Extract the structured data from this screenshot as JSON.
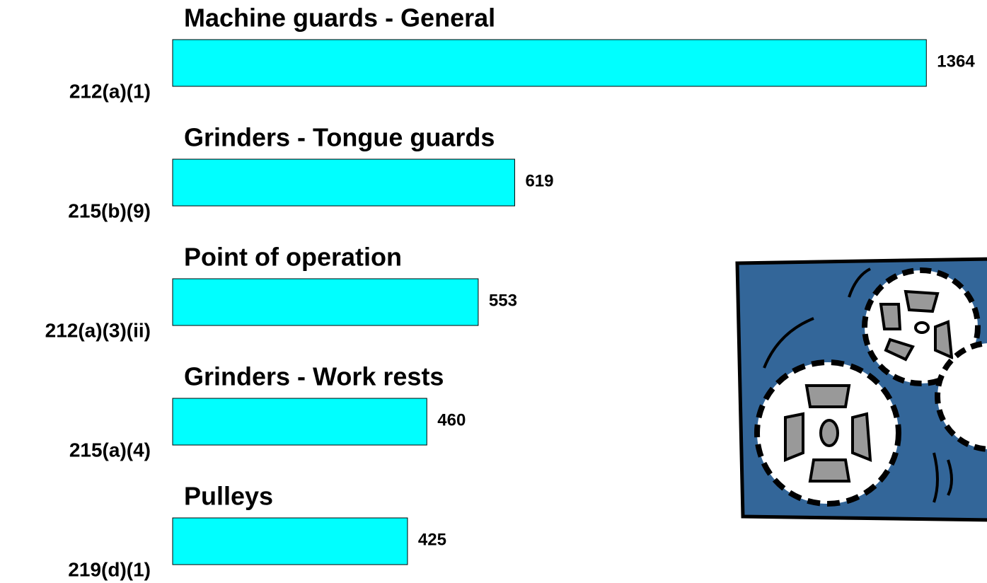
{
  "chart_data": {
    "type": "bar",
    "orientation": "horizontal",
    "categories": [
      "212(a)(1)",
      "215(b)(9)",
      "212(a)(3)(ii)",
      "215(a)(4)",
      "219(d)(1)"
    ],
    "descriptions": [
      "Machine guards - General",
      "Grinders - Tongue guards",
      "Point of operation",
      "Grinders -  Work rests",
      "Pulleys"
    ],
    "values": [
      1364,
      619,
      553,
      460,
      425
    ],
    "color": "#00ffff"
  }
}
